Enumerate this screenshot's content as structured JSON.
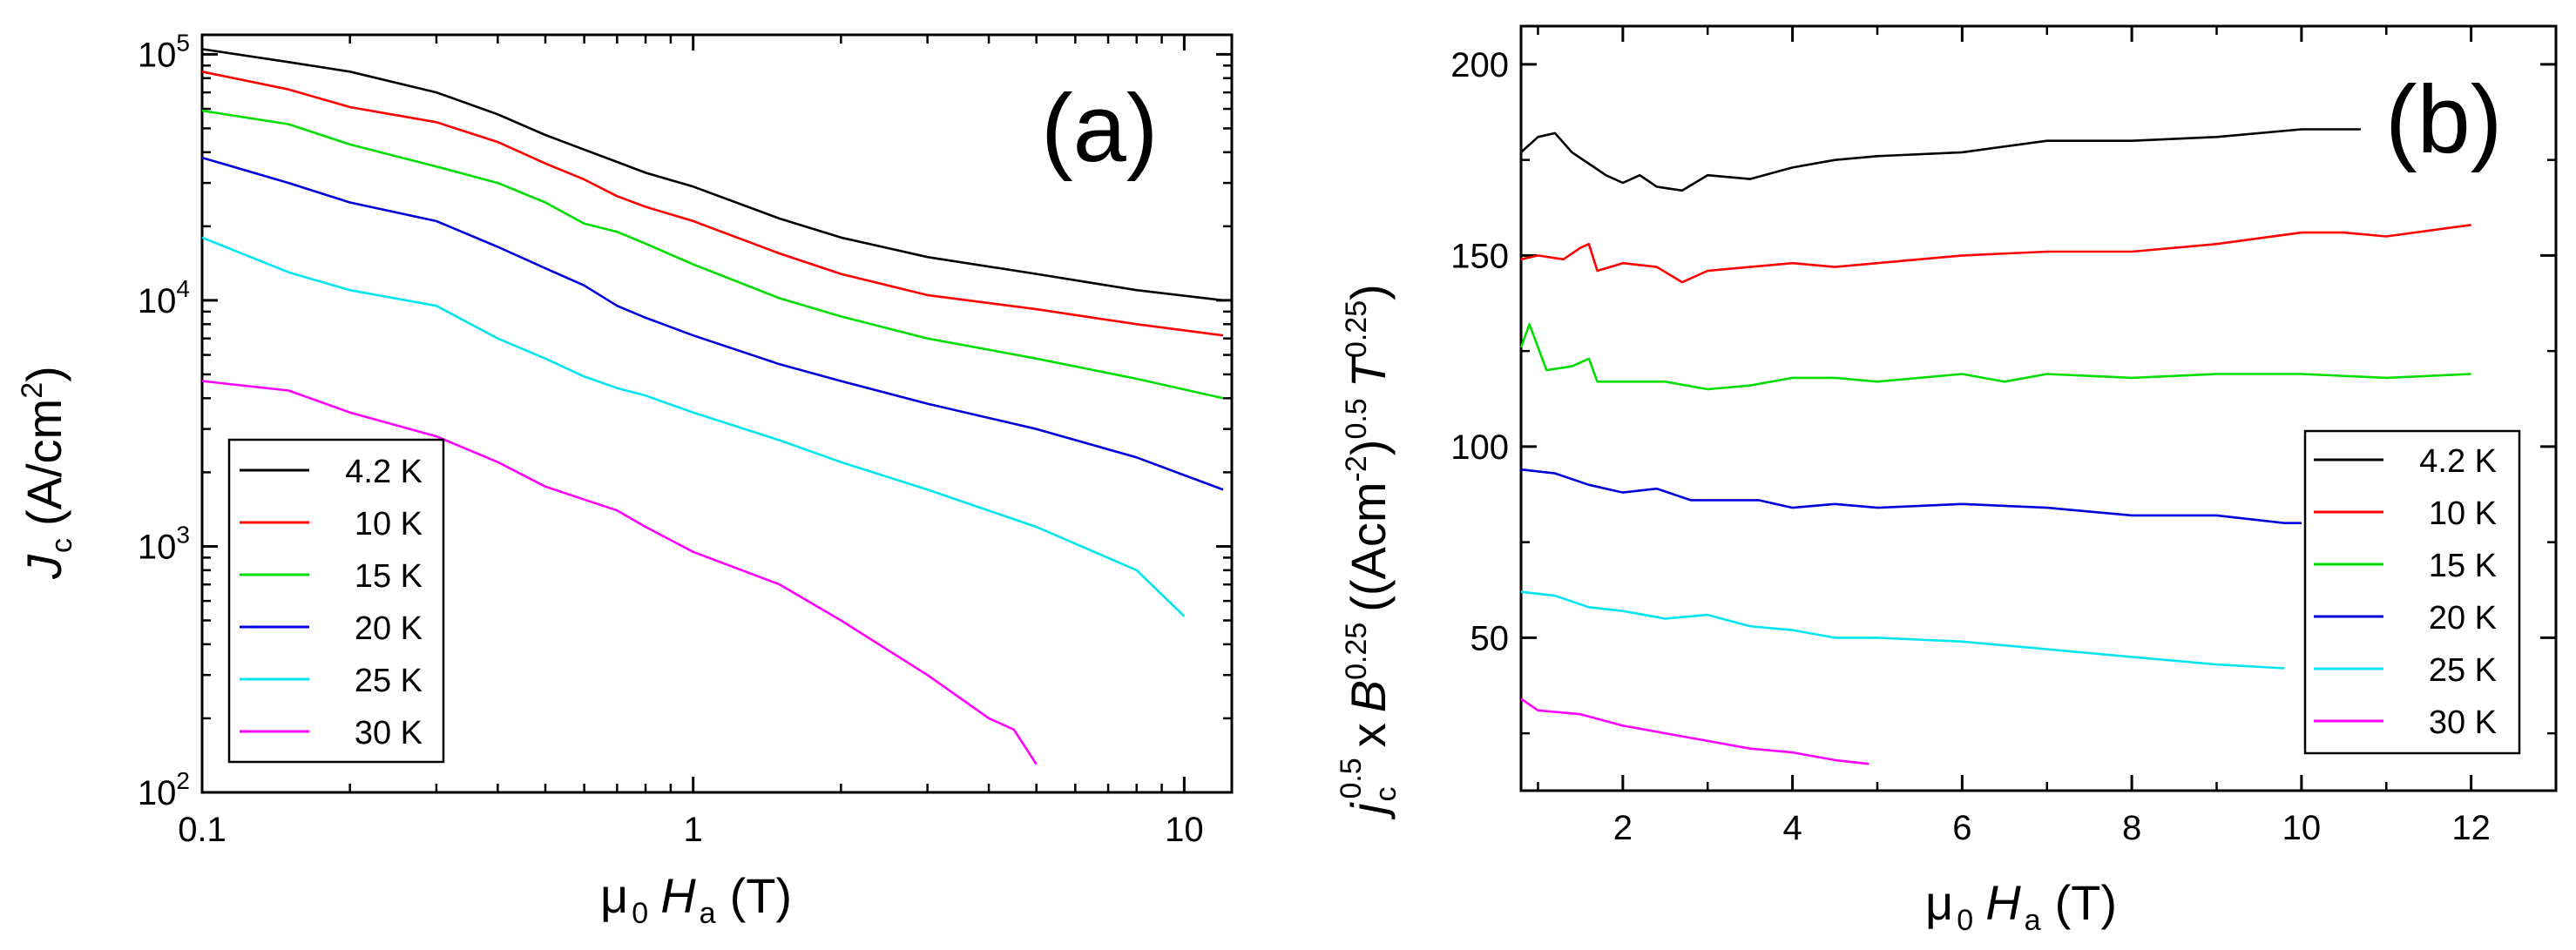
{
  "chart_data": [
    {
      "type": "line",
      "panel_label": "(a)",
      "x_scale": "log",
      "y_scale": "log",
      "xlim": [
        0.1,
        12.5
      ],
      "ylim": [
        100,
        120000
      ],
      "x_ticks": [
        {
          "v": 0.1,
          "label": "0.1"
        },
        {
          "v": 1,
          "label": "1"
        },
        {
          "v": 10,
          "label": "10"
        }
      ],
      "y_ticks": [
        {
          "v": 100,
          "mant": "10",
          "exp": "2"
        },
        {
          "v": 1000,
          "mant": "10",
          "exp": "3"
        },
        {
          "v": 10000,
          "mant": "10",
          "exp": "4"
        },
        {
          "v": 100000,
          "mant": "10",
          "exp": "5"
        }
      ],
      "xlabel": {
        "mu": "μ",
        "sub0": "0",
        "H": "H",
        "subA": "a",
        "unit": "(T)"
      },
      "ylabel": {
        "J": "J",
        "sub": "c",
        "unit_open": "(A/cm",
        "sup": "2",
        "close": ")"
      },
      "legend_position": "bottom-left",
      "series": [
        {
          "name": "4.2 K",
          "color": "#000000",
          "x": [
            0.1,
            0.15,
            0.2,
            0.3,
            0.4,
            0.5,
            0.6,
            0.7,
            0.8,
            1.0,
            1.5,
            2.0,
            3.0,
            5.0,
            8.0,
            12.0
          ],
          "y": [
            105000,
            93000,
            85000,
            70000,
            57000,
            47000,
            41000,
            36500,
            33000,
            29000,
            21500,
            18000,
            15000,
            12800,
            11000,
            10000
          ]
        },
        {
          "name": "10 K",
          "color": "#ff0000",
          "x": [
            0.1,
            0.15,
            0.2,
            0.3,
            0.4,
            0.5,
            0.6,
            0.7,
            0.8,
            1.0,
            1.5,
            2.0,
            3.0,
            5.0,
            8.0,
            12.0
          ],
          "y": [
            85000,
            72000,
            61000,
            53000,
            44000,
            36000,
            31000,
            26500,
            24000,
            21000,
            15500,
            12800,
            10500,
            9200,
            8000,
            7200
          ]
        },
        {
          "name": "15 K",
          "color": "#00dd00",
          "x": [
            0.1,
            0.15,
            0.2,
            0.3,
            0.4,
            0.5,
            0.6,
            0.7,
            0.8,
            1.0,
            1.5,
            2.0,
            3.0,
            5.0,
            8.0,
            12.0
          ],
          "y": [
            59000,
            52000,
            43000,
            35000,
            30000,
            25000,
            20500,
            19000,
            17000,
            14000,
            10200,
            8600,
            7000,
            5800,
            4800,
            4000
          ]
        },
        {
          "name": "20 K",
          "color": "#0000dd",
          "x": [
            0.1,
            0.15,
            0.2,
            0.3,
            0.4,
            0.5,
            0.6,
            0.7,
            0.8,
            1.0,
            1.5,
            2.0,
            3.0,
            5.0,
            8.0,
            12.0
          ],
          "y": [
            38000,
            30000,
            25000,
            21000,
            16500,
            13500,
            11500,
            9500,
            8500,
            7200,
            5500,
            4700,
            3800,
            3000,
            2300,
            1700
          ]
        },
        {
          "name": "25 K",
          "color": "#00e5ee",
          "x": [
            0.1,
            0.15,
            0.2,
            0.3,
            0.4,
            0.5,
            0.6,
            0.7,
            0.8,
            1.0,
            1.5,
            2.0,
            3.0,
            5.0,
            8.0,
            10.0
          ],
          "y": [
            18000,
            13000,
            11000,
            9500,
            7000,
            5800,
            4900,
            4400,
            4100,
            3500,
            2700,
            2200,
            1700,
            1200,
            800,
            520
          ]
        },
        {
          "name": "30 K",
          "color": "#ff00ff",
          "x": [
            0.1,
            0.15,
            0.2,
            0.3,
            0.4,
            0.5,
            0.6,
            0.7,
            0.8,
            1.0,
            1.5,
            2.0,
            3.0,
            4.0,
            4.5,
            5.0
          ],
          "y": [
            4700,
            4300,
            3500,
            2800,
            2200,
            1750,
            1550,
            1400,
            1200,
            950,
            700,
            500,
            300,
            200,
            180,
            130
          ]
        }
      ]
    },
    {
      "type": "line",
      "panel_label": "(b)",
      "x_scale": "linear",
      "y_scale": "linear",
      "xlim": [
        0.8,
        13.0
      ],
      "ylim": [
        10,
        210
      ],
      "x_ticks": [
        {
          "v": 2,
          "label": "2"
        },
        {
          "v": 4,
          "label": "4"
        },
        {
          "v": 6,
          "label": "6"
        },
        {
          "v": 8,
          "label": "8"
        },
        {
          "v": 10,
          "label": "10"
        },
        {
          "v": 12,
          "label": "12"
        }
      ],
      "y_ticks": [
        {
          "v": 50,
          "label": "50"
        },
        {
          "v": 100,
          "label": "100"
        },
        {
          "v": 150,
          "label": "150"
        },
        {
          "v": 200,
          "label": "200"
        }
      ],
      "xlabel": {
        "mu": "μ",
        "sub0": "0",
        "H": "H",
        "subA": "a",
        "unit": "(T)"
      },
      "ylabel": {
        "j": "j",
        "sub": "c",
        "sup1": "0.5",
        "x": "x",
        "B": "B",
        "sup2": "0.25",
        "open": "((Acm",
        "sup3": "-2",
        "close": ")",
        "sup4": "0.5",
        "T": "T",
        "sup5": "0.25",
        "end": ")"
      },
      "legend_position": "bottom-right",
      "series": [
        {
          "name": "4.2 K",
          "color": "#000000",
          "x": [
            0.8,
            1.0,
            1.2,
            1.4,
            1.6,
            1.8,
            2.0,
            2.2,
            2.4,
            2.7,
            3.0,
            3.5,
            4.0,
            4.5,
            5.0,
            6.0,
            7.0,
            8.0,
            9.0,
            10.0,
            10.7
          ],
          "y": [
            177,
            181,
            182,
            177,
            174,
            171,
            169,
            171,
            168,
            167,
            171,
            170,
            173,
            175,
            176,
            177,
            180,
            180,
            181,
            183,
            183
          ]
        },
        {
          "name": "10 K",
          "color": "#ff0000",
          "x": [
            0.8,
            1.0,
            1.3,
            1.5,
            1.6,
            1.7,
            2.0,
            2.4,
            2.7,
            3.0,
            3.5,
            4.0,
            4.5,
            5.0,
            6.0,
            7.0,
            8.0,
            9.0,
            10.0,
            10.5,
            11.0,
            12.0
          ],
          "y": [
            149,
            150,
            149,
            152,
            153,
            146,
            148,
            147,
            143,
            146,
            147,
            148,
            147,
            148,
            150,
            151,
            151,
            153,
            156,
            156,
            155,
            158
          ]
        },
        {
          "name": "15 K",
          "color": "#00dd00",
          "x": [
            0.8,
            0.9,
            1.1,
            1.4,
            1.6,
            1.7,
            2.0,
            2.5,
            3.0,
            3.5,
            4.0,
            4.5,
            5.0,
            6.0,
            6.5,
            7.0,
            8.0,
            9.0,
            10.0,
            11.0,
            12.0
          ],
          "y": [
            126,
            132,
            120,
            121,
            123,
            117,
            117,
            117,
            115,
            116,
            118,
            118,
            117,
            119,
            117,
            119,
            118,
            119,
            119,
            118,
            119
          ]
        },
        {
          "name": "20 K",
          "color": "#0000dd",
          "x": [
            0.8,
            1.2,
            1.6,
            2.0,
            2.4,
            2.8,
            3.2,
            3.6,
            4.0,
            4.5,
            5.0,
            6.0,
            7.0,
            8.0,
            9.0,
            9.8,
            10.0
          ],
          "y": [
            94,
            93,
            90,
            88,
            89,
            86,
            86,
            86,
            84,
            85,
            84,
            85,
            84,
            82,
            82,
            80,
            80
          ]
        },
        {
          "name": "25 K",
          "color": "#00e5ee",
          "x": [
            0.8,
            1.2,
            1.6,
            2.0,
            2.5,
            3.0,
            3.5,
            4.0,
            4.5,
            5.0,
            6.0,
            7.0,
            8.0,
            9.0,
            9.8
          ],
          "y": [
            62,
            61,
            58,
            57,
            55,
            56,
            53,
            52,
            50,
            50,
            49,
            47,
            45,
            43,
            42
          ]
        },
        {
          "name": "30 K",
          "color": "#ff00ff",
          "x": [
            0.8,
            1.0,
            1.5,
            2.0,
            2.5,
            3.0,
            3.5,
            4.0,
            4.5,
            4.9
          ],
          "y": [
            34,
            31,
            30,
            27,
            25,
            23,
            21,
            20,
            18,
            17
          ]
        }
      ]
    }
  ]
}
